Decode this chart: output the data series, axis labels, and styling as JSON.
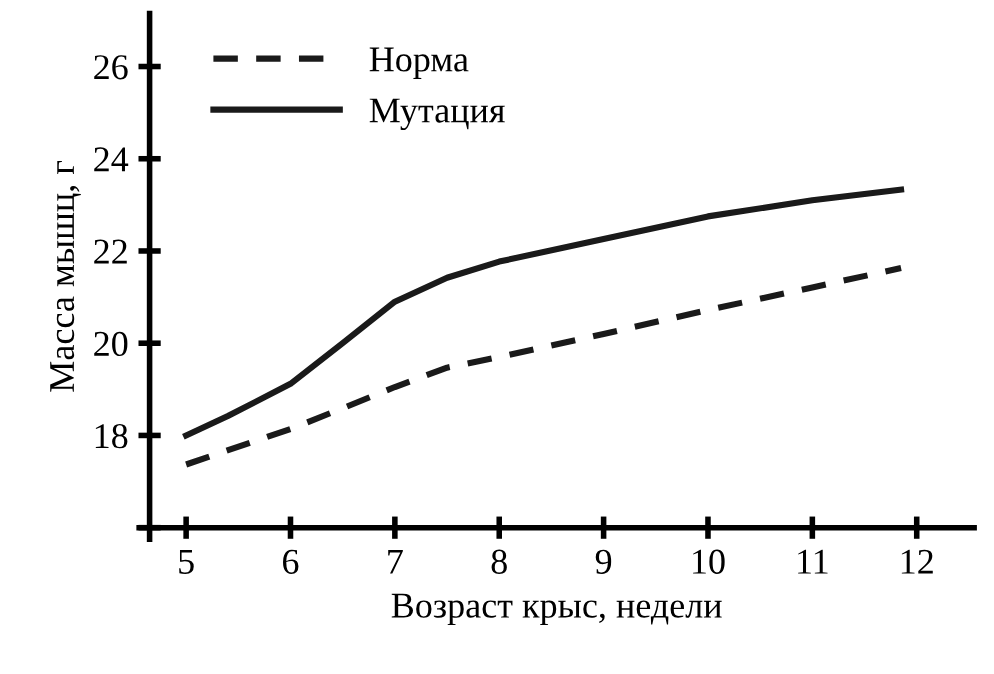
{
  "chart_data": {
    "type": "line",
    "xlabel": "Возраст крыс, недели",
    "ylabel": "Масса мышц, г",
    "xlim": [
      4.55,
      12.55
    ],
    "ylim": [
      15.75,
      27.15
    ],
    "xticks": [
      5,
      6,
      7,
      8,
      9,
      10,
      11,
      12
    ],
    "yticks": [
      {
        "value": 16,
        "label": null
      },
      18,
      20,
      22,
      24,
      26
    ],
    "grid": false,
    "legend": "top left",
    "series": [
      {
        "name": "Норма",
        "color": "#1a1a1a",
        "line_style": "dashed",
        "x": [
          5,
          6,
          6.5,
          7,
          7.5,
          8,
          9,
          10,
          11,
          11.85
        ],
        "values": [
          17.37,
          18.14,
          18.59,
          19.05,
          19.47,
          19.7,
          20.2,
          20.72,
          21.21,
          21.63
        ]
      },
      {
        "name": "Мутация",
        "color": "#1a1a1a",
        "line_style": "solid",
        "x": [
          5,
          5.4,
          6,
          6.5,
          7,
          7.5,
          8,
          9,
          10,
          11,
          11.85
        ],
        "values": [
          18.0,
          18.42,
          19.12,
          20.0,
          20.9,
          21.42,
          21.77,
          22.26,
          22.75,
          23.1,
          23.33
        ]
      }
    ]
  }
}
